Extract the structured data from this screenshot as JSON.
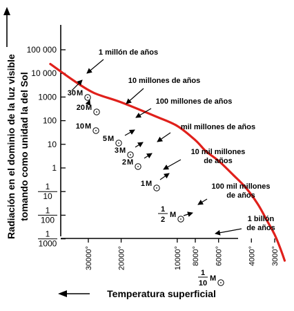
{
  "chart_data": {
    "type": "line",
    "ylabel_line1": "Radiación en el dominio de la luz visible",
    "ylabel_line2": "tomando como unidad la del Sol",
    "xlabel": "Temperatura superficial",
    "y_ticks": [
      {
        "value": 100000,
        "label": "100 000"
      },
      {
        "value": 10000,
        "label": "10 000"
      },
      {
        "value": 1000,
        "label": "1000"
      },
      {
        "value": 100,
        "label": "100"
      },
      {
        "value": 10,
        "label": "10"
      },
      {
        "value": 1,
        "label": "1"
      },
      {
        "value": 0.1,
        "num": "1",
        "den": "10"
      },
      {
        "value": 0.01,
        "num": "1",
        "den": "100"
      },
      {
        "value": 0.001,
        "num": "1",
        "den": "1000"
      }
    ],
    "x_ticks": [
      {
        "value": 30000,
        "label": "30000°"
      },
      {
        "value": 20000,
        "label": "20000°"
      },
      {
        "value": 10000,
        "label": "10000°"
      },
      {
        "value": 8000,
        "label": "8000°"
      },
      {
        "value": 6000,
        "label": "6000°"
      },
      {
        "value": 4000,
        "label": "4000°"
      },
      {
        "value": 3000,
        "label": "3000°"
      }
    ],
    "x_scale": "log, reversed (hotter to the left)",
    "y_scale": "log",
    "series": [
      {
        "color": "#e0201b",
        "points": [
          {
            "x": 48000,
            "y": 25000
          },
          {
            "x": 36000,
            "y": 5000
          },
          {
            "x": 28000,
            "y": 1500
          },
          {
            "x": 20000,
            "y": 600
          },
          {
            "x": 13000,
            "y": 150
          },
          {
            "x": 10000,
            "y": 60
          },
          {
            "x": 8000,
            "y": 15
          },
          {
            "x": 7000,
            "y": 5
          },
          {
            "x": 6000,
            "y": 2
          },
          {
            "x": 5000,
            "y": 0.5
          },
          {
            "x": 4300,
            "y": 0.15
          },
          {
            "x": 3700,
            "y": 0.03
          },
          {
            "x": 3300,
            "y": 0.006
          },
          {
            "x": 3000,
            "y": 0.0015
          },
          {
            "x": 2800,
            "y": 0.0004
          },
          {
            "x": 2650,
            "y": 0.00012
          }
        ]
      }
    ],
    "annotations": [
      {
        "lines": [
          "1 millón de años"
        ]
      },
      {
        "lines": [
          "10 millones de años"
        ]
      },
      {
        "lines": [
          "100 millones de años"
        ]
      },
      {
        "lines": [
          "mil millones de años"
        ]
      },
      {
        "lines": [
          "10 mil millones",
          "de años"
        ]
      },
      {
        "lines": [
          "100 mil millones",
          "de años"
        ]
      },
      {
        "lines": [
          "1 billón",
          "de años"
        ]
      }
    ],
    "masses": [
      {
        "num": "30"
      },
      {
        "num": "20"
      },
      {
        "num": "10"
      },
      {
        "num": "5"
      },
      {
        "num": "3"
      },
      {
        "num": "2"
      },
      {
        "num": "1"
      },
      {
        "num": "1",
        "den": "2"
      },
      {
        "num": "1",
        "den": "10"
      }
    ],
    "mass_unit": "M"
  }
}
